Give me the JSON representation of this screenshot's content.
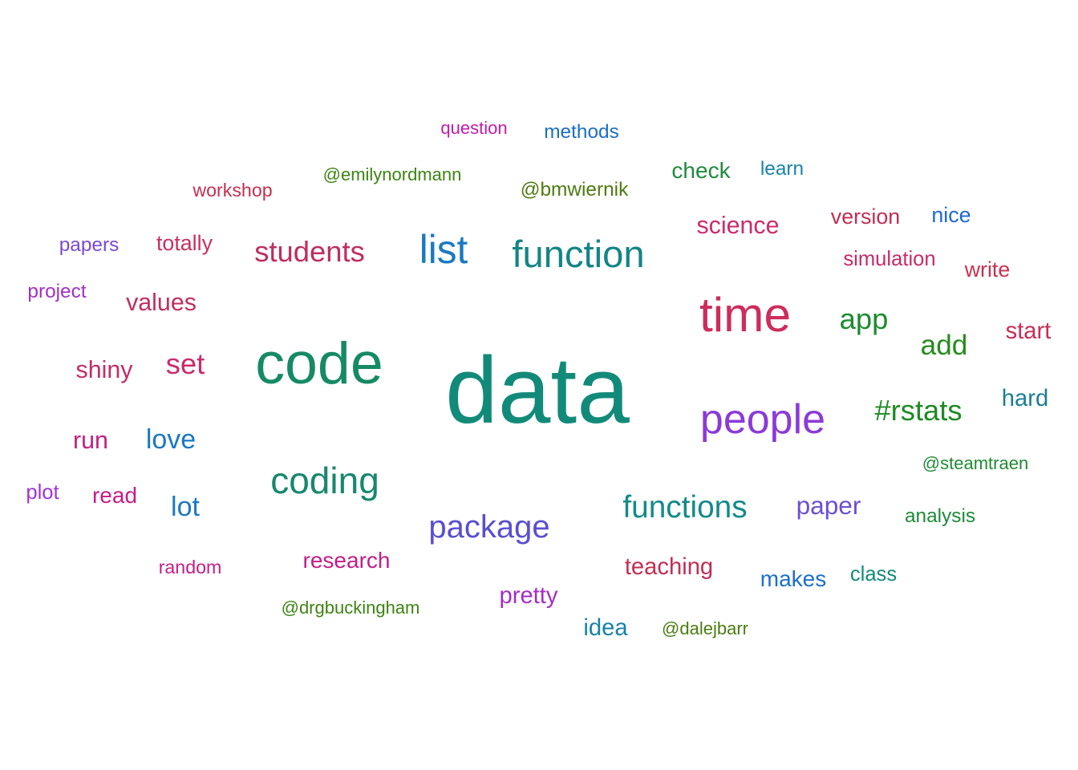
{
  "chart_data": {
    "type": "wordcloud",
    "words": [
      {
        "text": "data",
        "value": 100,
        "color": "#128a7a"
      },
      {
        "text": "code",
        "value": 63,
        "color": "#168a65"
      },
      {
        "text": "time",
        "value": 52,
        "color": "#cc2d5c"
      },
      {
        "text": "people",
        "value": 45,
        "color": "#8b3ad8"
      },
      {
        "text": "list",
        "value": 43,
        "color": "#1a79c0"
      },
      {
        "text": "function",
        "value": 41,
        "color": "#138585"
      },
      {
        "text": "coding",
        "value": 40,
        "color": "#17886e"
      },
      {
        "text": "package",
        "value": 35,
        "color": "#5a4fd0"
      },
      {
        "text": "functions",
        "value": 34,
        "color": "#148a8a"
      },
      {
        "text": "students",
        "value": 32,
        "color": "#c02d5e"
      },
      {
        "text": "app",
        "value": 32,
        "color": "#1b8b2f"
      },
      {
        "text": "#rstats",
        "value": 32,
        "color": "#1d8a24"
      },
      {
        "text": "set",
        "value": 32,
        "color": "#cc2a6b"
      },
      {
        "text": "add",
        "value": 31,
        "color": "#258b1c"
      },
      {
        "text": "love",
        "value": 30,
        "color": "#1a78c4"
      },
      {
        "text": "lot",
        "value": 30,
        "color": "#1b79c2"
      },
      {
        "text": "paper",
        "value": 28,
        "color": "#6a4fd4"
      },
      {
        "text": "science",
        "value": 27,
        "color": "#cc2b6b"
      },
      {
        "text": "values",
        "value": 27,
        "color": "#c22e60"
      },
      {
        "text": "run",
        "value": 27,
        "color": "#c21e82"
      },
      {
        "text": "shiny",
        "value": 27,
        "color": "#c22e66"
      },
      {
        "text": "start",
        "value": 26,
        "color": "#c53056"
      },
      {
        "text": "hard",
        "value": 26,
        "color": "#1b7f93"
      },
      {
        "text": "idea",
        "value": 26,
        "color": "#1a82a6"
      },
      {
        "text": "pretty",
        "value": 26,
        "color": "#a52ec4"
      },
      {
        "text": "teaching",
        "value": 26,
        "color": "#c12e54"
      },
      {
        "text": "makes",
        "value": 25,
        "color": "#1a6fce"
      },
      {
        "text": "read",
        "value": 25,
        "color": "#c21e8a"
      },
      {
        "text": "research",
        "value": 25,
        "color": "#c21e8a"
      },
      {
        "text": "check",
        "value": 25,
        "color": "#208b3c"
      },
      {
        "text": "nice",
        "value": 24,
        "color": "#1c6ad0"
      },
      {
        "text": "totally",
        "value": 24,
        "color": "#c73060"
      },
      {
        "text": "write",
        "value": 24,
        "color": "#c93050"
      },
      {
        "text": "version",
        "value": 24,
        "color": "#c22e54"
      },
      {
        "text": "simulation",
        "value": 23,
        "color": "#c52c6a"
      },
      {
        "text": "learn",
        "value": 22,
        "color": "#1a84aa"
      },
      {
        "text": "plot",
        "value": 23,
        "color": "#a433d4"
      },
      {
        "text": "class",
        "value": 23,
        "color": "#148a7a"
      },
      {
        "text": "analysis",
        "value": 22,
        "color": "#1f8a3a"
      },
      {
        "text": "methods",
        "value": 22,
        "color": "#1a6fc4"
      },
      {
        "text": "project",
        "value": 22,
        "color": "#a22fc6"
      },
      {
        "text": "papers",
        "value": 22,
        "color": "#7a4ad4"
      },
      {
        "text": "random",
        "value": 21,
        "color": "#c21e8a"
      },
      {
        "text": "workshop",
        "value": 21,
        "color": "#c23052"
      },
      {
        "text": "question",
        "value": 20,
        "color": "#c01ca8"
      },
      {
        "text": "@steamtraen",
        "value": 20,
        "color": "#1f8b34"
      },
      {
        "text": "@bmwiernik",
        "value": 22,
        "color": "#4e7a10"
      },
      {
        "text": "@emilynordmann",
        "value": 20,
        "color": "#3d8412"
      },
      {
        "text": "@drgbuckingham",
        "value": 20,
        "color": "#3d8412"
      },
      {
        "text": "@dalejbarr",
        "value": 20,
        "color": "#4a7d10"
      }
    ]
  }
}
